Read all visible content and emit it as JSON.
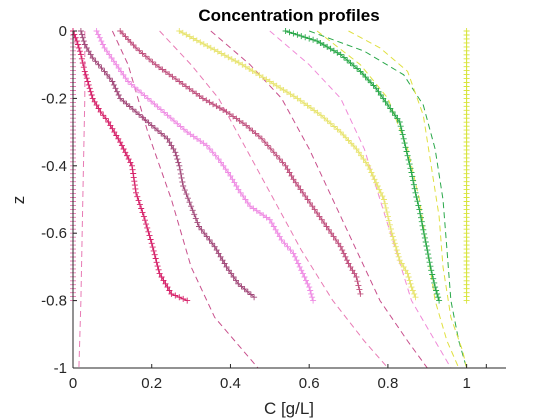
{
  "chart_data": {
    "type": "line",
    "title": "Concentration profiles",
    "xlabel": "C [g/L]",
    "ylabel": "z",
    "xlim": [
      0,
      1.1
    ],
    "ylim": [
      -1,
      0
    ],
    "xticks": [
      0,
      0.2,
      0.4,
      0.6,
      0.8,
      1
    ],
    "xtick_labels": [
      "0",
      "0.2",
      "0.4",
      "0.6",
      "0.8",
      "1"
    ],
    "yticks": [
      0,
      -0.2,
      -0.4,
      -0.6,
      -0.8,
      -1
    ],
    "ytick_labels": [
      "0",
      "-0.2",
      "-0.4",
      "-0.6",
      "-0.8",
      "-1"
    ],
    "grid": false,
    "legend": "none",
    "dashed_series": [
      {
        "color": "#e87ab4",
        "points": [
          [
            0.03,
            0
          ],
          [
            0.03,
            -0.2
          ],
          [
            0.025,
            -0.5
          ],
          [
            0.02,
            -0.8
          ],
          [
            0.015,
            -1
          ]
        ]
      },
      {
        "color": "#c84f8c",
        "points": [
          [
            0.1,
            0
          ],
          [
            0.14,
            -0.1
          ],
          [
            0.19,
            -0.3
          ],
          [
            0.25,
            -0.5
          ],
          [
            0.3,
            -0.7
          ],
          [
            0.36,
            -0.85
          ],
          [
            0.47,
            -1
          ]
        ]
      },
      {
        "color": "#e87ab4",
        "points": [
          [
            0.22,
            0
          ],
          [
            0.3,
            -0.1
          ],
          [
            0.37,
            -0.2
          ],
          [
            0.44,
            -0.35
          ],
          [
            0.51,
            -0.5
          ],
          [
            0.58,
            -0.65
          ],
          [
            0.66,
            -0.8
          ],
          [
            0.74,
            -0.92
          ],
          [
            0.8,
            -1
          ]
        ]
      },
      {
        "color": "#c84f8c",
        "points": [
          [
            0.35,
            0
          ],
          [
            0.45,
            -0.1
          ],
          [
            0.53,
            -0.2
          ],
          [
            0.6,
            -0.35
          ],
          [
            0.66,
            -0.5
          ],
          [
            0.72,
            -0.65
          ],
          [
            0.78,
            -0.8
          ],
          [
            0.85,
            -0.92
          ],
          [
            0.9,
            -1
          ]
        ]
      },
      {
        "color": "#f08ad8",
        "points": [
          [
            0.5,
            0
          ],
          [
            0.6,
            -0.1
          ],
          [
            0.68,
            -0.2
          ],
          [
            0.74,
            -0.35
          ],
          [
            0.78,
            -0.5
          ],
          [
            0.82,
            -0.65
          ],
          [
            0.86,
            -0.8
          ],
          [
            0.92,
            -0.92
          ],
          [
            0.96,
            -1
          ]
        ]
      },
      {
        "color": "#e0e040",
        "points": [
          [
            0.62,
            0
          ],
          [
            0.73,
            -0.1
          ],
          [
            0.8,
            -0.2
          ],
          [
            0.85,
            -0.35
          ],
          [
            0.88,
            -0.5
          ],
          [
            0.9,
            -0.65
          ],
          [
            0.92,
            -0.8
          ],
          [
            0.95,
            -0.92
          ],
          [
            0.98,
            -1
          ]
        ]
      },
      {
        "color": "#2aa84a",
        "points": [
          [
            0.6,
            0
          ],
          [
            0.74,
            -0.06
          ],
          [
            0.84,
            -0.13
          ],
          [
            0.89,
            -0.22
          ],
          [
            0.92,
            -0.35
          ],
          [
            0.94,
            -0.5
          ],
          [
            0.95,
            -0.65
          ],
          [
            0.96,
            -0.8
          ],
          [
            0.98,
            -0.92
          ],
          [
            1,
            -1
          ]
        ]
      },
      {
        "color": "#e0e040",
        "points": [
          [
            0.7,
            0
          ],
          [
            0.78,
            -0.05
          ],
          [
            0.85,
            -0.12
          ],
          [
            0.89,
            -0.25
          ],
          [
            0.91,
            -0.4
          ],
          [
            0.93,
            -0.55
          ],
          [
            0.94,
            -0.7
          ],
          [
            0.96,
            -0.85
          ],
          [
            0.99,
            -0.95
          ],
          [
            1,
            -1
          ]
        ]
      }
    ],
    "marker_series": [
      {
        "color": "#e87ab4",
        "points": [
          [
            0,
            0
          ],
          [
            0,
            -0.4
          ],
          [
            0,
            -0.8
          ]
        ]
      },
      {
        "color": "#d6236a",
        "points": [
          [
            0,
            0
          ],
          [
            0.01,
            -0.03
          ],
          [
            0.02,
            -0.07
          ],
          [
            0.03,
            -0.12
          ],
          [
            0.04,
            -0.16
          ],
          [
            0.05,
            -0.2
          ],
          [
            0.07,
            -0.24
          ],
          [
            0.09,
            -0.27
          ],
          [
            0.12,
            -0.33
          ],
          [
            0.15,
            -0.4
          ],
          [
            0.16,
            -0.48
          ],
          [
            0.18,
            -0.55
          ],
          [
            0.2,
            -0.63
          ],
          [
            0.22,
            -0.72
          ],
          [
            0.25,
            -0.78
          ],
          [
            0.29,
            -0.8
          ]
        ]
      },
      {
        "color": "#a24a7a",
        "points": [
          [
            0.02,
            0
          ],
          [
            0.03,
            -0.04
          ],
          [
            0.05,
            -0.08
          ],
          [
            0.08,
            -0.12
          ],
          [
            0.1,
            -0.15
          ],
          [
            0.12,
            -0.2
          ],
          [
            0.16,
            -0.24
          ],
          [
            0.2,
            -0.28
          ],
          [
            0.24,
            -0.32
          ],
          [
            0.26,
            -0.36
          ],
          [
            0.27,
            -0.4
          ],
          [
            0.28,
            -0.46
          ],
          [
            0.3,
            -0.52
          ],
          [
            0.32,
            -0.58
          ],
          [
            0.36,
            -0.64
          ],
          [
            0.39,
            -0.7
          ],
          [
            0.42,
            -0.75
          ],
          [
            0.46,
            -0.79
          ]
        ]
      },
      {
        "color": "#ef8ee4",
        "points": [
          [
            0.06,
            0
          ],
          [
            0.08,
            -0.05
          ],
          [
            0.11,
            -0.1
          ],
          [
            0.14,
            -0.15
          ],
          [
            0.19,
            -0.2
          ],
          [
            0.24,
            -0.25
          ],
          [
            0.29,
            -0.3
          ],
          [
            0.34,
            -0.34
          ],
          [
            0.37,
            -0.38
          ],
          [
            0.4,
            -0.43
          ],
          [
            0.42,
            -0.47
          ],
          [
            0.45,
            -0.52
          ],
          [
            0.5,
            -0.56
          ],
          [
            0.53,
            -0.62
          ],
          [
            0.56,
            -0.66
          ],
          [
            0.58,
            -0.71
          ],
          [
            0.6,
            -0.76
          ],
          [
            0.61,
            -0.8
          ]
        ]
      },
      {
        "color": "#c0517e",
        "points": [
          [
            0.12,
            0
          ],
          [
            0.16,
            -0.05
          ],
          [
            0.21,
            -0.1
          ],
          [
            0.27,
            -0.15
          ],
          [
            0.33,
            -0.2
          ],
          [
            0.39,
            -0.24
          ],
          [
            0.44,
            -0.28
          ],
          [
            0.48,
            -0.32
          ],
          [
            0.51,
            -0.36
          ],
          [
            0.54,
            -0.4
          ],
          [
            0.56,
            -0.44
          ],
          [
            0.59,
            -0.49
          ],
          [
            0.62,
            -0.54
          ],
          [
            0.65,
            -0.59
          ],
          [
            0.68,
            -0.64
          ],
          [
            0.7,
            -0.69
          ],
          [
            0.72,
            -0.73
          ],
          [
            0.73,
            -0.78
          ]
        ]
      },
      {
        "color": "#e8e470",
        "points": [
          [
            0.27,
            0
          ],
          [
            0.35,
            -0.05
          ],
          [
            0.43,
            -0.1
          ],
          [
            0.5,
            -0.15
          ],
          [
            0.57,
            -0.2
          ],
          [
            0.63,
            -0.25
          ],
          [
            0.68,
            -0.3
          ],
          [
            0.72,
            -0.35
          ],
          [
            0.75,
            -0.4
          ],
          [
            0.77,
            -0.45
          ],
          [
            0.79,
            -0.5
          ],
          [
            0.8,
            -0.55
          ],
          [
            0.81,
            -0.6
          ],
          [
            0.82,
            -0.64
          ],
          [
            0.83,
            -0.68
          ],
          [
            0.85,
            -0.72
          ],
          [
            0.86,
            -0.76
          ],
          [
            0.87,
            -0.79
          ]
        ]
      },
      {
        "color": "#2aa84a",
        "points": [
          [
            0.54,
            0
          ],
          [
            0.62,
            -0.03
          ],
          [
            0.68,
            -0.07
          ],
          [
            0.73,
            -0.12
          ],
          [
            0.77,
            -0.17
          ],
          [
            0.8,
            -0.22
          ],
          [
            0.83,
            -0.27
          ],
          [
            0.84,
            -0.32
          ],
          [
            0.85,
            -0.37
          ],
          [
            0.86,
            -0.42
          ],
          [
            0.87,
            -0.48
          ],
          [
            0.88,
            -0.53
          ],
          [
            0.89,
            -0.59
          ],
          [
            0.9,
            -0.65
          ],
          [
            0.91,
            -0.71
          ],
          [
            0.92,
            -0.76
          ],
          [
            0.93,
            -0.8
          ]
        ]
      },
      {
        "color": "#d8e43c",
        "points": [
          [
            1,
            0
          ],
          [
            1,
            -0.2
          ],
          [
            1,
            -0.4
          ],
          [
            1,
            -0.6
          ],
          [
            1,
            -0.8
          ]
        ]
      }
    ]
  }
}
